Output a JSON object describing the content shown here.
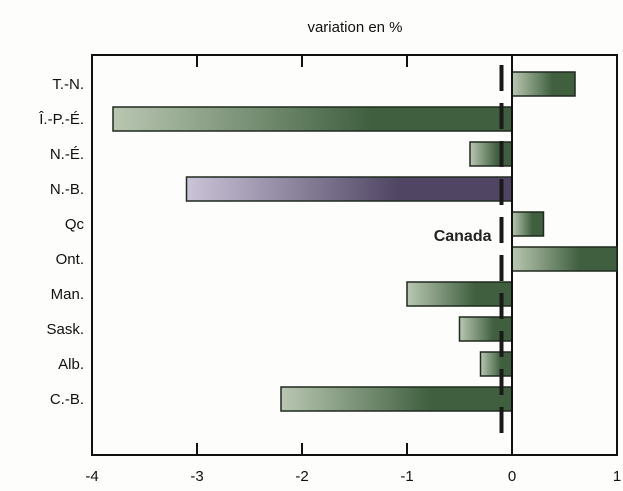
{
  "chart_data": {
    "type": "bar",
    "orientation": "horizontal",
    "title": "variation en %",
    "xlabel": "",
    "ylabel": "",
    "categories": [
      "T.-N.",
      "Î.-P.-É.",
      "N.-É.",
      "N.-B.",
      "Qc",
      "Ont.",
      "Man.",
      "Sask.",
      "Alb.",
      "C.-B."
    ],
    "values": [
      0.6,
      -3.8,
      -0.4,
      -3.1,
      0.3,
      1.0,
      -1.0,
      -0.5,
      -0.3,
      -2.2
    ],
    "xlim": [
      -4,
      1
    ],
    "xticks": [
      -4,
      -3,
      -2,
      -1,
      0,
      1
    ],
    "grid": false,
    "reference_line": {
      "label": "Canada",
      "value": -0.1
    },
    "colors": {
      "green": "#3f5f3f",
      "green_light": "#b9c7b2",
      "purple": "#504664",
      "purple_light": "#cbc4d8"
    },
    "bar_color_keys": [
      "green",
      "green",
      "green",
      "purple",
      "green",
      "green",
      "green",
      "green",
      "green",
      "green"
    ]
  }
}
